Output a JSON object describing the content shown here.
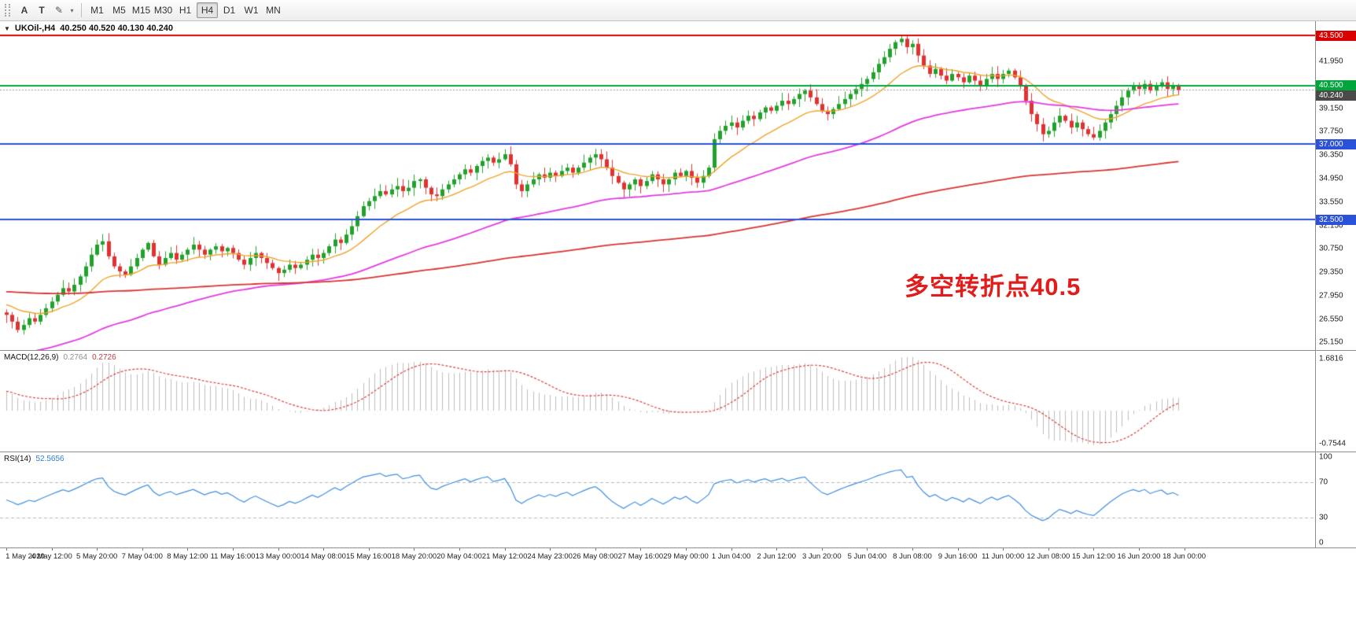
{
  "icons": {
    "dropdown_triangle": "▼",
    "pencil": "✎",
    "chevron_down": "▾"
  },
  "toolbar": {
    "buttons": [
      {
        "name": "text-annotation",
        "label": "A"
      },
      {
        "name": "thumbnail",
        "label": "T"
      }
    ],
    "timeframes": [
      "M1",
      "M5",
      "M15",
      "M30",
      "H1",
      "H4",
      "D1",
      "W1",
      "MN"
    ],
    "selected_timeframe": "H4"
  },
  "chart": {
    "symbol_period": "UKOil-,H4",
    "ohlc": "40.250 40.520 40.130 40.240",
    "annotation": {
      "text": "多空转折点40.5",
      "color": "#e21b1b"
    },
    "price_axis": {
      "ticks": [
        41.95,
        39.15,
        37.75,
        36.35,
        34.95,
        33.55,
        32.15,
        30.75,
        29.35,
        27.95,
        26.55,
        25.15
      ],
      "badges": [
        {
          "value": 43.5,
          "label": "43.500",
          "bg": "#d90000"
        },
        {
          "value": 40.5,
          "label": "40.500",
          "bg": "#00a53c"
        },
        {
          "value": 40.24,
          "label": "40.240",
          "bg": "#4a4a4a"
        },
        {
          "value": 37.0,
          "label": "37.000",
          "bg": "#2b50d9"
        },
        {
          "value": 32.5,
          "label": "32.500",
          "bg": "#2b50d9"
        }
      ]
    },
    "hlines": [
      {
        "value": 43.5,
        "color": "#d90000",
        "width": 2,
        "style": "solid"
      },
      {
        "value": 40.5,
        "color": "#00a53c",
        "width": 2,
        "style": "solid"
      },
      {
        "value": 40.24,
        "color": "#9a9a9a",
        "width": 1,
        "style": "dotted"
      },
      {
        "value": 37.0,
        "color": "#2b50d9",
        "width": 2,
        "style": "solid"
      },
      {
        "value": 32.5,
        "color": "#2b50d9",
        "width": 2,
        "style": "solid"
      }
    ]
  },
  "macd_panel": {
    "name": "MACD(12,26,9)",
    "main_value": "0.2764",
    "signal_value": "0.2726",
    "axis_max": "1.6816",
    "axis_min": "-0.7544"
  },
  "rsi_panel": {
    "name": "RSI(14)",
    "value": "52.5656",
    "axis_ticks": [
      100,
      70,
      30,
      0
    ],
    "levels": [
      70,
      30
    ]
  },
  "time_axis": [
    "1 May 2020",
    "4 May 12:00",
    "5 May 20:00",
    "7 May 04:00",
    "8 May 12:00",
    "11 May 16:00",
    "13 May 00:00",
    "14 May 08:00",
    "15 May 16:00",
    "18 May 20:00",
    "20 May 04:00",
    "21 May 12:00",
    "24 May 23:00",
    "26 May 08:00",
    "27 May 16:00",
    "29 May 00:00",
    "1 Jun 04:00",
    "2 Jun 12:00",
    "3 Jun 20:00",
    "5 Jun 04:00",
    "8 Jun 08:00",
    "9 Jun 16:00",
    "11 Jun 00:00",
    "12 Jun 08:00",
    "15 Jun 12:00",
    "16 Jun 20:00",
    "18 Jun 00:00"
  ],
  "chart_data": {
    "type": "candlestick",
    "symbol": "UKOil-",
    "timeframe": "H4",
    "date_range": [
      "1 May 2020",
      "18 Jun 2020"
    ],
    "price_range_view": [
      24.7,
      44.35
    ],
    "up_color": "#22a12c",
    "down_color": "#e03232",
    "closes": [
      26.8,
      26.4,
      25.9,
      26.2,
      26.6,
      26.4,
      26.8,
      27.2,
      27.6,
      28.0,
      28.4,
      28.2,
      28.6,
      29.1,
      29.7,
      30.4,
      31.0,
      31.2,
      30.3,
      29.7,
      29.4,
      29.2,
      29.7,
      30.2,
      30.7,
      31.1,
      30.3,
      29.8,
      30.2,
      30.5,
      30.1,
      30.4,
      30.7,
      31.0,
      30.7,
      30.4,
      30.7,
      30.9,
      30.6,
      30.8,
      30.5,
      30.1,
      29.8,
      30.2,
      30.5,
      30.2,
      29.9,
      29.6,
      29.3,
      29.5,
      29.8,
      29.6,
      29.8,
      30.1,
      30.4,
      30.2,
      30.5,
      30.9,
      31.3,
      31.1,
      31.6,
      32.1,
      32.7,
      33.3,
      33.6,
      33.9,
      34.2,
      34.0,
      34.3,
      34.5,
      34.2,
      34.4,
      34.8,
      34.9,
      34.4,
      34.0,
      33.9,
      34.3,
      34.6,
      34.9,
      35.2,
      35.5,
      35.3,
      35.7,
      36.0,
      36.2,
      35.9,
      36.1,
      36.4,
      35.8,
      34.6,
      34.2,
      34.6,
      34.9,
      35.2,
      35.0,
      35.3,
      35.1,
      35.4,
      35.6,
      35.3,
      35.6,
      35.9,
      36.2,
      36.4,
      36.1,
      35.6,
      35.1,
      34.7,
      34.3,
      34.6,
      34.9,
      34.5,
      34.8,
      35.2,
      34.9,
      34.6,
      34.9,
      35.3,
      35.1,
      35.4,
      35.0,
      34.7,
      35.1,
      35.6,
      37.3,
      37.8,
      38.1,
      38.3,
      38.0,
      38.4,
      38.7,
      38.5,
      38.9,
      39.2,
      39.0,
      39.3,
      39.6,
      39.4,
      39.7,
      40.0,
      40.2,
      39.8,
      39.4,
      39.0,
      38.8,
      39.1,
      39.4,
      39.7,
      40.0,
      40.3,
      40.6,
      40.9,
      41.3,
      41.8,
      42.2,
      42.7,
      43.1,
      43.3,
      42.8,
      43.0,
      42.3,
      41.7,
      41.2,
      41.5,
      41.1,
      40.8,
      41.2,
      41.0,
      40.7,
      41.1,
      40.8,
      40.5,
      40.9,
      41.2,
      40.9,
      41.2,
      41.4,
      41.0,
      40.5,
      39.6,
      38.8,
      38.2,
      37.6,
      37.8,
      38.3,
      38.7,
      38.4,
      38.0,
      38.3,
      37.9,
      37.6,
      37.4,
      37.8,
      38.3,
      38.8,
      39.3,
      39.8,
      40.2,
      40.5,
      40.3,
      40.6,
      40.2,
      40.5,
      40.7,
      40.3,
      40.5,
      40.24
    ],
    "moving_averages": [
      {
        "name": "fast-ma",
        "color": "#efa32a",
        "k": 0.12,
        "init": 27.5,
        "width": 1.4
      },
      {
        "name": "medium-ma",
        "color": "#e23ae2",
        "k": 0.03,
        "init": 24.3,
        "width": 1.8
      },
      {
        "name": "slow-ma",
        "color": "#d93333",
        "k": 0.009,
        "init": 28.2,
        "width": 1.8
      }
    ],
    "indicators": {
      "macd": {
        "params": [
          12,
          26,
          9
        ],
        "histogram_color": "#bdbdbd",
        "signal_color": "#d94040",
        "last_main": 0.2764,
        "last_signal": 0.2726,
        "view_range": [
          -0.7544,
          1.6816
        ]
      },
      "rsi": {
        "period": 14,
        "color": "#3e8fdf",
        "range": [
          0,
          100
        ],
        "levels": [
          70,
          30
        ],
        "last": 52.5656
      }
    }
  }
}
